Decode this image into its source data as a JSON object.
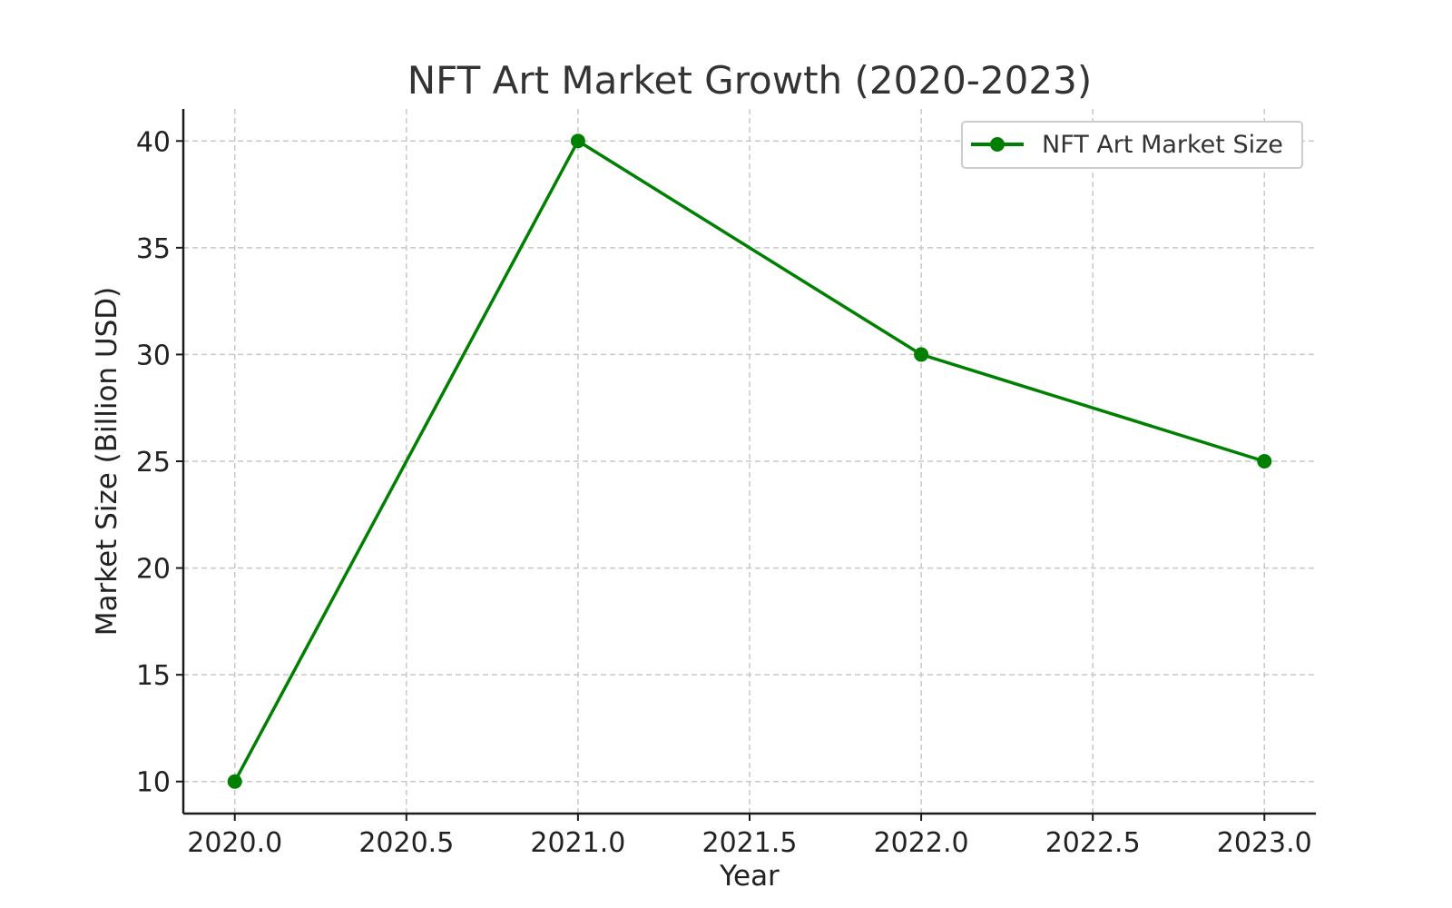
{
  "chart_data": {
    "type": "line",
    "title": "NFT Art Market Growth (2020-2023)",
    "xlabel": "Year",
    "ylabel": "Market Size (Billion USD)",
    "xlim": [
      2019.85,
      2023.15
    ],
    "ylim": [
      8.5,
      41.5
    ],
    "x_ticks": [
      2020.0,
      2020.5,
      2021.0,
      2021.5,
      2022.0,
      2022.5,
      2023.0
    ],
    "x_tick_labels": [
      "2020.0",
      "2020.5",
      "2021.0",
      "2021.5",
      "2022.0",
      "2022.5",
      "2023.0"
    ],
    "y_ticks": [
      10,
      15,
      20,
      25,
      30,
      35,
      40
    ],
    "y_tick_labels": [
      "10",
      "15",
      "20",
      "25",
      "30",
      "35",
      "40"
    ],
    "grid": true,
    "legend_position": "top-right",
    "series": [
      {
        "name": "NFT Art Market Size",
        "color": "#008000",
        "marker": "circle",
        "x": [
          2020,
          2021,
          2022,
          2023
        ],
        "values": [
          10,
          40,
          30,
          25
        ]
      }
    ]
  }
}
